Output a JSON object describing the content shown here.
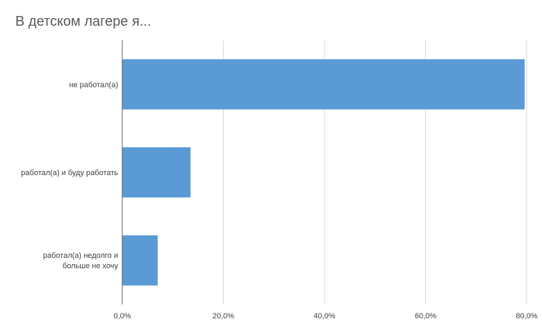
{
  "chart_data": {
    "type": "bar",
    "orientation": "horizontal",
    "title": "В детском лагере я...",
    "categories": [
      [
        "не работал(а)"
      ],
      [
        "работал(а) и буду работать"
      ],
      [
        "работал(а) недолго и",
        "больше не хочу"
      ]
    ],
    "values": [
      79.6,
      13.5,
      7.0
    ],
    "xlim": [
      0,
      80
    ],
    "xticks": [
      0,
      20,
      40,
      60,
      80
    ],
    "xtick_labels": [
      "0,0%",
      "20,0%",
      "40,0%",
      "60,0%",
      "80,0%"
    ],
    "grid": true,
    "legend": "none",
    "bar_color": "#5b9bd5",
    "grid_color": "#d9d9d9",
    "axis_color": "#595959"
  }
}
